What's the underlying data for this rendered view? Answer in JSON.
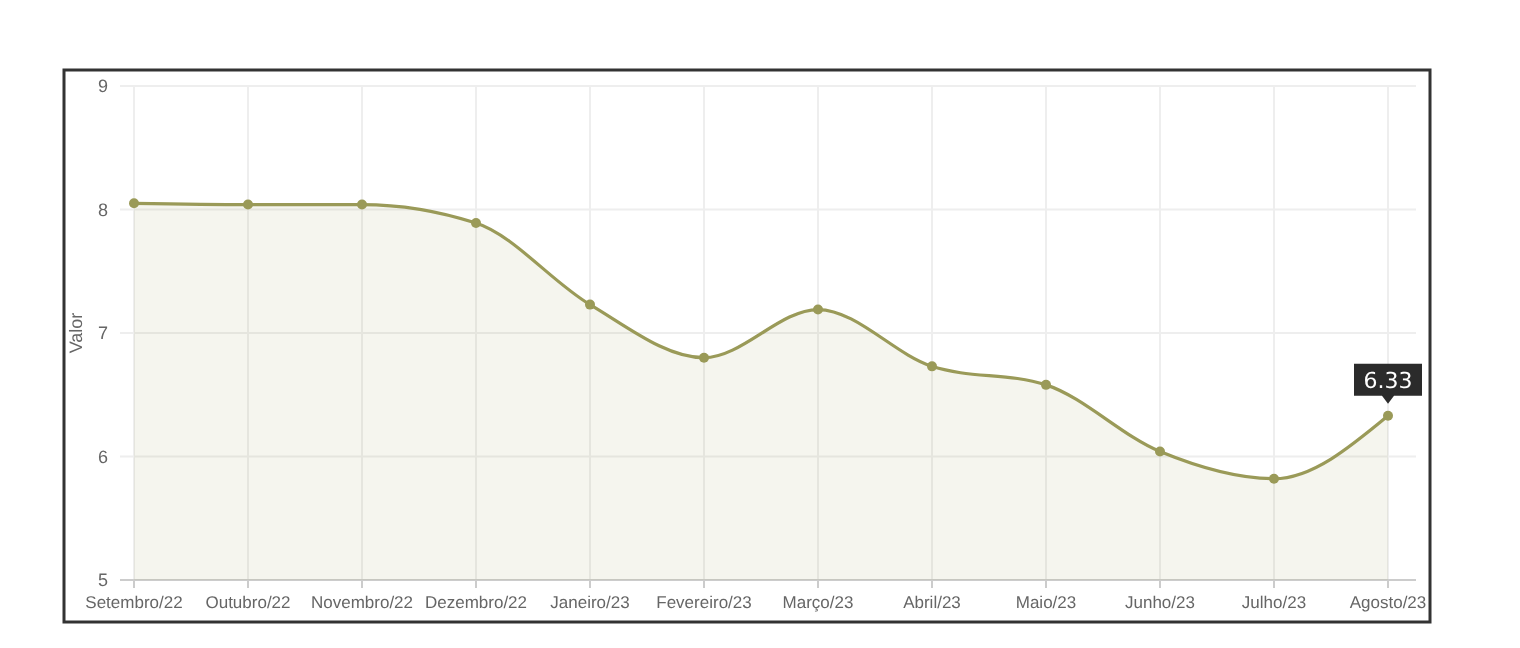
{
  "chart_data": {
    "type": "area",
    "ylabel": "Valor",
    "categories": [
      "Setembro/22",
      "Outubro/22",
      "Novembro/22",
      "Dezembro/22",
      "Janeiro/23",
      "Fevereiro/23",
      "Março/23",
      "Abril/23",
      "Maio/23",
      "Junho/23",
      "Julho/23",
      "Agosto/23"
    ],
    "series": [
      {
        "color": "#9a9a58",
        "values": [
          8.05,
          8.04,
          8.04,
          7.89,
          7.23,
          6.8,
          7.19,
          6.73,
          6.58,
          6.04,
          5.82,
          6.33
        ],
        "value_labels": [
          null,
          null,
          null,
          null,
          null,
          null,
          null,
          null,
          null,
          null,
          null,
          "6.33"
        ]
      }
    ],
    "ylim": [
      5,
      9
    ],
    "yticks": [
      5,
      6,
      7,
      8,
      9
    ],
    "grid": true,
    "marker": "circle"
  }
}
